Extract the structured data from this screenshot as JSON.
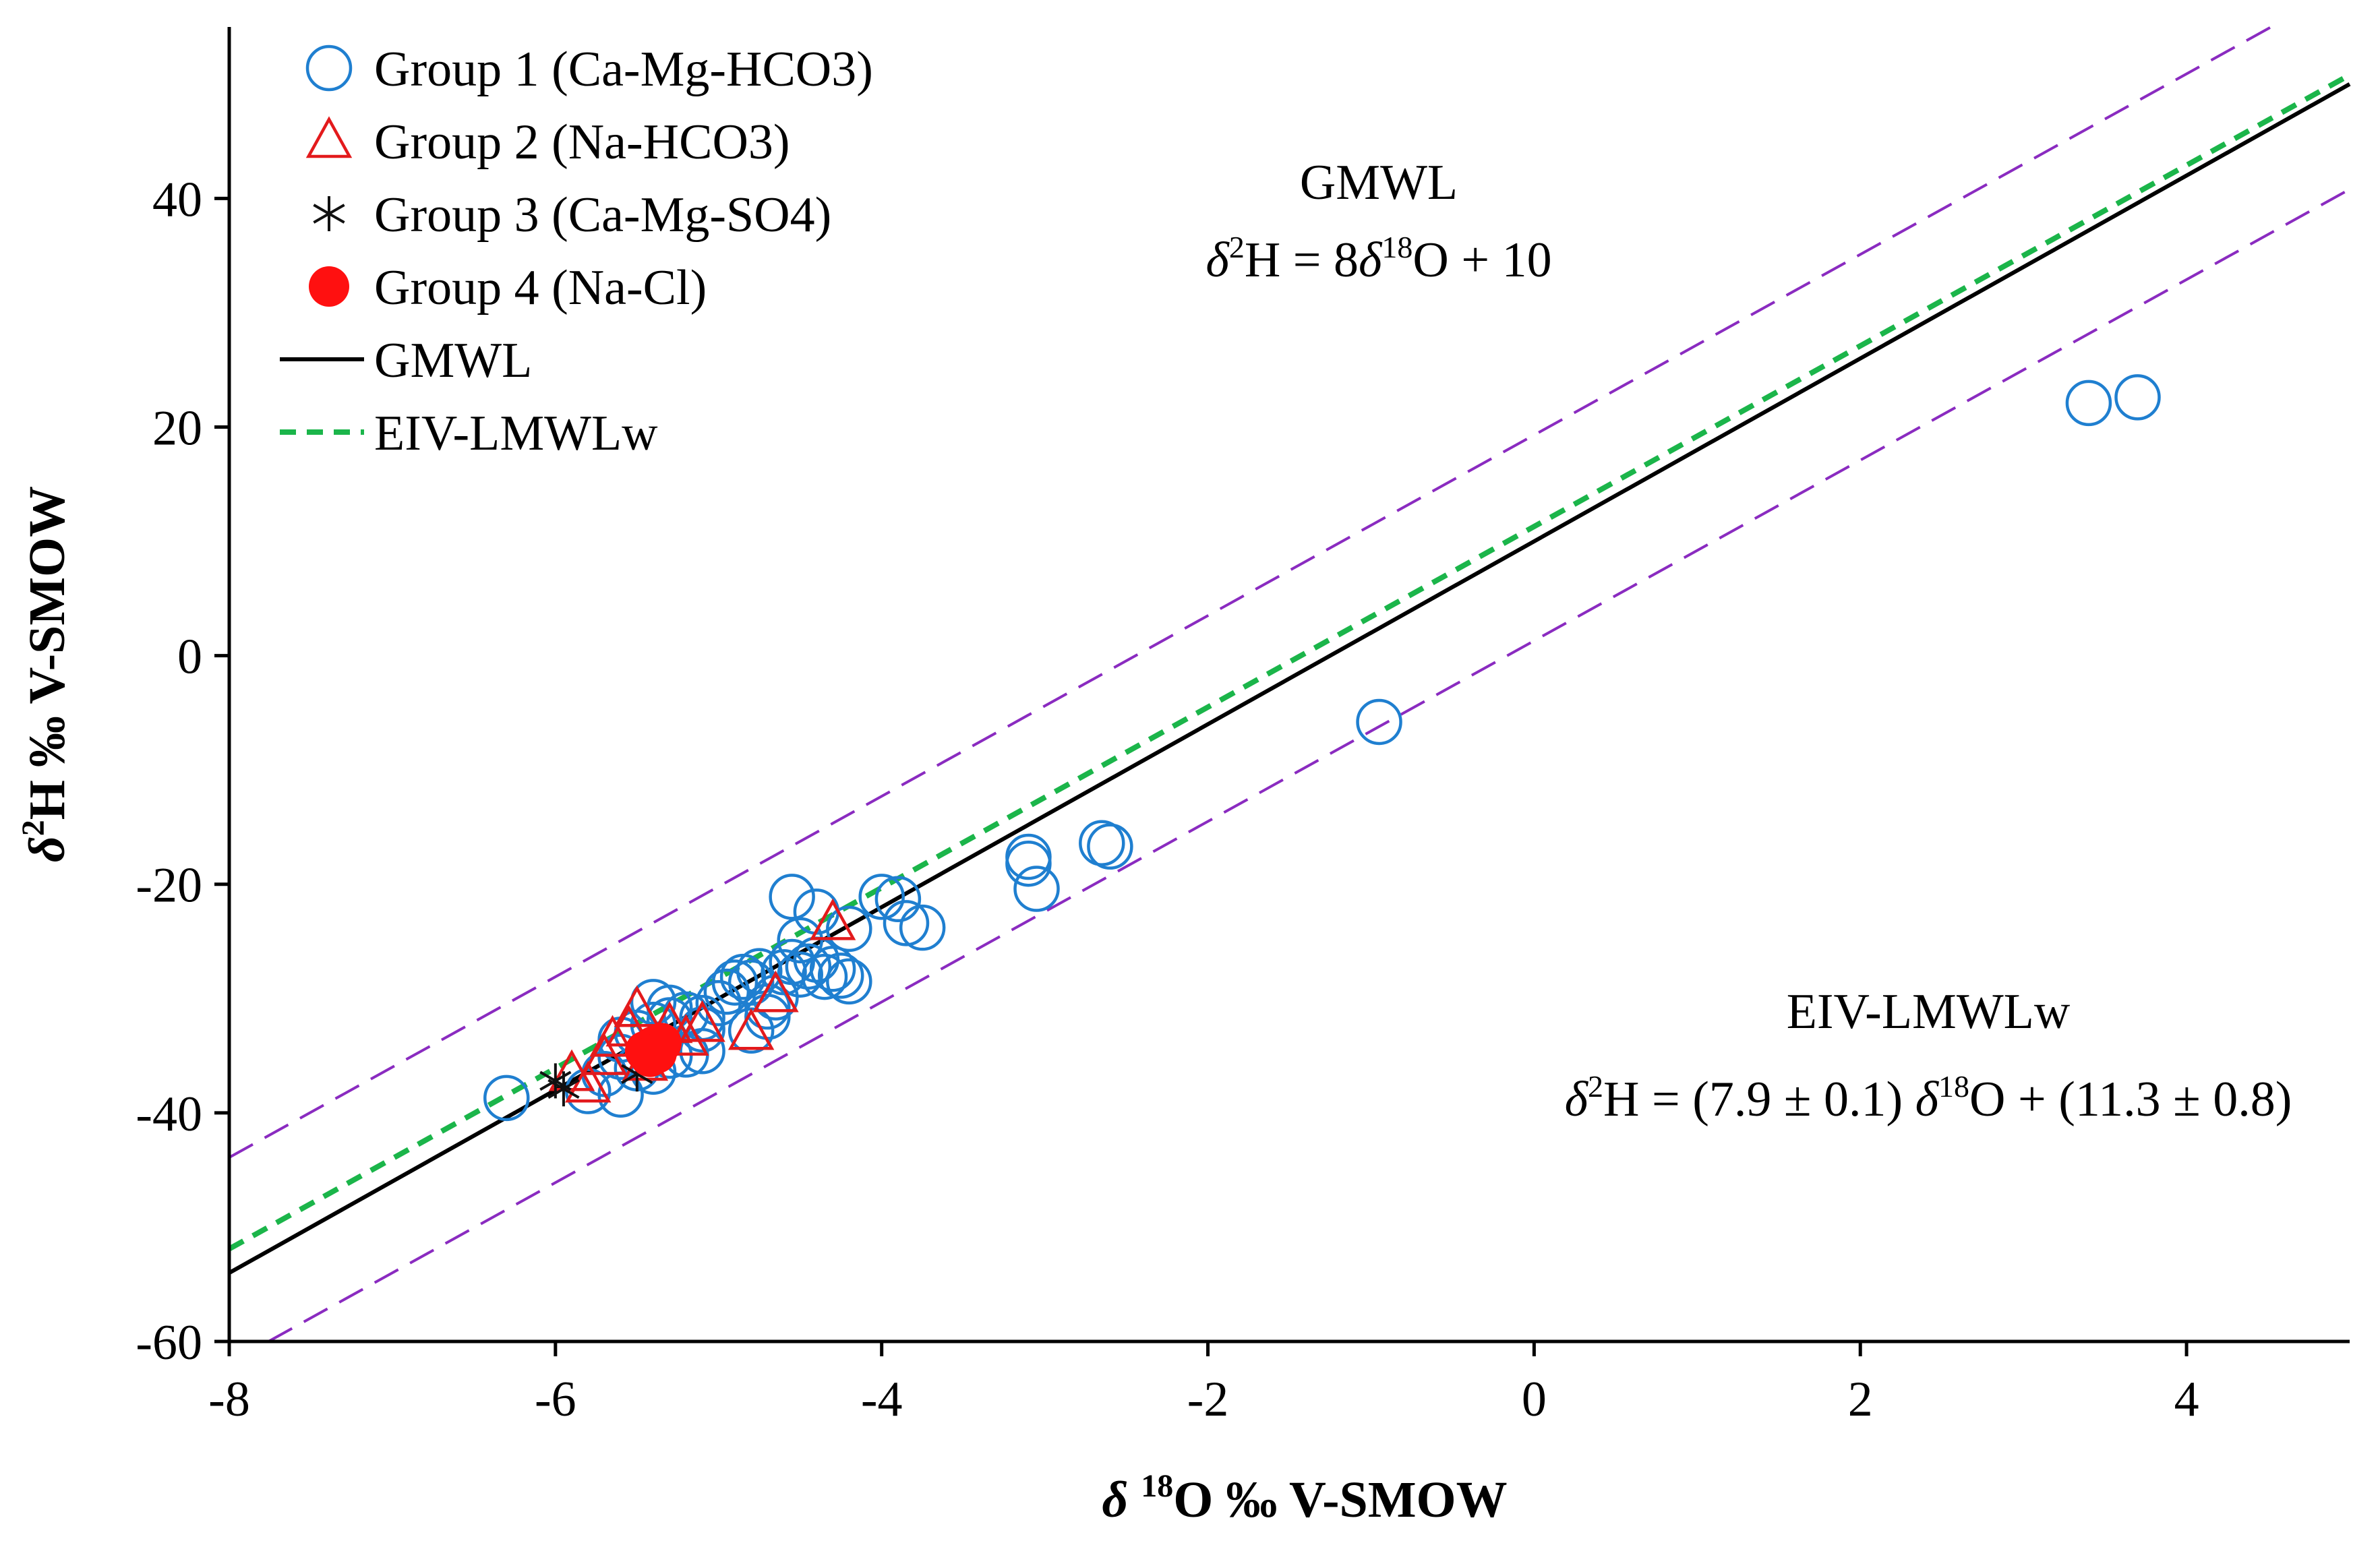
{
  "chart_data": {
    "type": "scatter",
    "xlabel": "δ ¹⁸O ‰ V-SMOW",
    "ylabel": "δ²H ‰ V-SMOW",
    "xlim": [
      -8,
      5
    ],
    "ylim": [
      -60,
      55
    ],
    "x_ticks": [
      -8,
      -6,
      -4,
      -2,
      0,
      2,
      4
    ],
    "y_ticks": [
      -60,
      -40,
      -20,
      0,
      20,
      40
    ],
    "grid": false,
    "legend_position": "top-left",
    "series": [
      {
        "name": "Group 1 (Ca-Mg-HCO3)",
        "marker": "open-circle",
        "color": "#1f7fd0",
        "points": [
          [
            -6.3,
            -38.7
          ],
          [
            -5.8,
            -38.1
          ],
          [
            -5.6,
            -38.4
          ],
          [
            -5.7,
            -36.6
          ],
          [
            -5.5,
            -36.1
          ],
          [
            -5.6,
            -35.1
          ],
          [
            -5.4,
            -36.4
          ],
          [
            -5.3,
            -35.0
          ],
          [
            -5.2,
            -34.9
          ],
          [
            -5.1,
            -34.6
          ],
          [
            -5.6,
            -33.6
          ],
          [
            -5.5,
            -33.0
          ],
          [
            -5.4,
            -32.3
          ],
          [
            -5.3,
            -31.9
          ],
          [
            -5.4,
            -30.3
          ],
          [
            -5.3,
            -30.8
          ],
          [
            -5.2,
            -31.4
          ],
          [
            -5.1,
            -32.7
          ],
          [
            -5.1,
            -31.7
          ],
          [
            -5.0,
            -30.4
          ],
          [
            -4.95,
            -29.4
          ],
          [
            -4.9,
            -28.6
          ],
          [
            -4.85,
            -28.1
          ],
          [
            -4.8,
            -28.6
          ],
          [
            -4.75,
            -27.6
          ],
          [
            -4.8,
            -32.8
          ],
          [
            -4.7,
            -30.7
          ],
          [
            -4.65,
            -29.9
          ],
          [
            -4.7,
            -31.6
          ],
          [
            -4.6,
            -27.7
          ],
          [
            -4.55,
            -26.8
          ],
          [
            -4.5,
            -27.9
          ],
          [
            -4.45,
            -27.2
          ],
          [
            -4.4,
            -26.6
          ],
          [
            -4.35,
            -28.1
          ],
          [
            -4.3,
            -27.4
          ],
          [
            -4.25,
            -28.0
          ],
          [
            -4.2,
            -28.5
          ],
          [
            -4.4,
            -22.4
          ],
          [
            -4.5,
            -24.9
          ],
          [
            -4.55,
            -21.1
          ],
          [
            -4.2,
            -23.9
          ],
          [
            -4.0,
            -21.1
          ],
          [
            -3.9,
            -21.3
          ],
          [
            -3.85,
            -23.4
          ],
          [
            -3.75,
            -23.8
          ],
          [
            -3.1,
            -17.6
          ],
          [
            -3.1,
            -18.2
          ],
          [
            -3.05,
            -20.4
          ],
          [
            -2.65,
            -16.4
          ],
          [
            -2.6,
            -16.7
          ],
          [
            -0.95,
            -5.8
          ],
          [
            3.4,
            22.1
          ],
          [
            3.7,
            22.6
          ]
        ]
      },
      {
        "name": "Group 2 (Na-HCO3)",
        "marker": "open-triangle",
        "color": "#e31a1c",
        "points": [
          [
            -5.9,
            -36.6
          ],
          [
            -5.8,
            -37.6
          ],
          [
            -5.7,
            -35.2
          ],
          [
            -5.65,
            -33.6
          ],
          [
            -5.55,
            -32.7
          ],
          [
            -5.5,
            -31.0
          ],
          [
            -5.45,
            -35.7
          ],
          [
            -5.3,
            -32.4
          ],
          [
            -5.2,
            -33.5
          ],
          [
            -5.1,
            -32.3
          ],
          [
            -4.8,
            -33.0
          ],
          [
            -4.65,
            -29.7
          ],
          [
            -4.3,
            -23.4
          ]
        ]
      },
      {
        "name": "Group 3 (Ca-Mg-SO4)",
        "marker": "asterisk",
        "color": "#111111",
        "points": [
          [
            -6.0,
            -37.2
          ],
          [
            -5.95,
            -37.9
          ],
          [
            -5.5,
            -36.6
          ]
        ]
      },
      {
        "name": "Group 4 (Na-Cl)",
        "marker": "filled-circle",
        "color": "#ff1010",
        "points": [
          [
            -5.45,
            -34.6
          ],
          [
            -5.4,
            -34.2
          ],
          [
            -5.35,
            -33.9
          ],
          [
            -5.42,
            -35.1
          ],
          [
            -5.38,
            -34.8
          ]
        ]
      },
      {
        "name": "GMWL",
        "type": "line",
        "style": "solid",
        "color": "#000000",
        "slope": 8,
        "intercept": 10
      },
      {
        "name": "EIV-LMWLw",
        "type": "line",
        "style": "dashed",
        "color": "#1bb54a",
        "slope": 7.9,
        "intercept": 11.3
      },
      {
        "name": "",
        "type": "line",
        "style": "dashed",
        "color": "#8a2bc0",
        "slope": 7.9,
        "intercept": 19.3,
        "role": "upper-bound"
      },
      {
        "name": "",
        "type": "line",
        "style": "dashed",
        "color": "#8a2bc0",
        "slope": 7.9,
        "intercept": 1.3,
        "role": "lower-bound"
      }
    ],
    "annotations": {
      "gmwl_title": "GMWL",
      "gmwl_eq_prefix": "δ",
      "gmwl_eq_sup1": "2",
      "gmwl_eq_mid": "H = 8",
      "gmwl_eq_delta": "δ",
      "gmwl_eq_sup2": "18",
      "gmwl_eq_end": "O + 10",
      "lmwl_title": "EIV-LMWLw",
      "lmwl_eq_prefix": "δ",
      "lmwl_eq_sup1": "2",
      "lmwl_eq_mid": "H = (7.9 ± 0.1) ",
      "lmwl_eq_delta": "δ",
      "lmwl_eq_sup2": "18",
      "lmwl_eq_end": "O + (11.3 ± 0.8)"
    },
    "axis_title_parts": {
      "x_delta": "δ ",
      "x_sup": "18",
      "x_rest": "O ‰ V-SMOW",
      "y_delta": "δ",
      "y_sup": "2",
      "y_rest": "H ‰ V-SMOW"
    }
  }
}
